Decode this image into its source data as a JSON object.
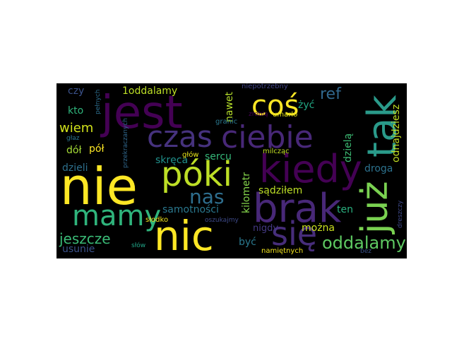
{
  "words": [
    {
      "text": "jest",
      "color": "#440154"
    },
    {
      "text": "nie",
      "color": "#fde725"
    },
    {
      "text": "tak",
      "color": "#2a9a8a"
    },
    {
      "text": "już",
      "color": "#7ad151"
    },
    {
      "text": "coś",
      "color": "#fde725"
    },
    {
      "text": "czas",
      "color": "#46327e"
    },
    {
      "text": "ciebie",
      "color": "#482878"
    },
    {
      "text": "kiedy",
      "color": "#440154"
    },
    {
      "text": "brak",
      "color": "#482878"
    },
    {
      "text": "póki",
      "color": "#bddf26"
    },
    {
      "text": "nas",
      "color": "#2e6e8e"
    },
    {
      "text": "mamy",
      "color": "#2fb47c"
    },
    {
      "text": "nic",
      "color": "#fde725"
    },
    {
      "text": "się",
      "color": "#472d7b"
    },
    {
      "text": "jeszcze",
      "color": "#3aba76"
    },
    {
      "text": "oddalamy",
      "color": "#5ec962"
    },
    {
      "text": "samotności",
      "color": "#2a788e"
    },
    {
      "text": "skręca",
      "color": "#21918c"
    },
    {
      "text": "sercu",
      "color": "#35b779"
    },
    {
      "text": "sądziłem",
      "color": "#bddf26"
    },
    {
      "text": "droga",
      "color": "#2c728e"
    },
    {
      "text": "ref",
      "color": "#31688e"
    },
    {
      "text": "kilometr",
      "color": "#84d44b"
    },
    {
      "text": "nigdy",
      "color": "#443983"
    },
    {
      "text": "być",
      "color": "#2a788e"
    },
    {
      "text": "można",
      "color": "#cae11f"
    },
    {
      "text": "ten",
      "color": "#2ab07f"
    },
    {
      "text": "usunie",
      "color": "#3b528b"
    },
    {
      "text": "dzieli",
      "color": "#2d708e"
    },
    {
      "text": "pół",
      "color": "#fde725"
    },
    {
      "text": "dół",
      "color": "#a5db36"
    },
    {
      "text": "wiem",
      "color": "#d2e21b"
    },
    {
      "text": "kto",
      "color": "#2fb47c"
    },
    {
      "text": "czy",
      "color": "#3b528b"
    },
    {
      "text": "1oddalamy",
      "color": "#bddf26"
    },
    {
      "text": "nawet",
      "color": "#b5de2b"
    },
    {
      "text": "żyć",
      "color": "#22a884"
    },
    {
      "text": "odnajdziesz",
      "color": "#c2df23"
    },
    {
      "text": "dzielą",
      "color": "#3dbc74"
    },
    {
      "text": "niepotrzebny",
      "color": "#414487"
    },
    {
      "text": "zrobią",
      "color": "#440154"
    },
    {
      "text": "umarło",
      "color": "#e5e419"
    },
    {
      "text": "granic",
      "color": "#2a788e"
    },
    {
      "text": "milcząc",
      "color": "#c2df23"
    },
    {
      "text": "głów",
      "color": "#e7e419"
    },
    {
      "text": "przekraczanych",
      "color": "#31688e"
    },
    {
      "text": "pełnych",
      "color": "#2e6e8e"
    },
    {
      "text": "głaz",
      "color": "#2b758e"
    },
    {
      "text": "słodko",
      "color": "#f1e51d"
    },
    {
      "text": "oszukajmy",
      "color": "#3e4a89"
    },
    {
      "text": "słów",
      "color": "#20a386"
    },
    {
      "text": "namiętnych",
      "color": "#f4e61e"
    },
    {
      "text": "bez",
      "color": "#3b528b"
    },
    {
      "text": "dreszczy",
      "color": "#3e4989"
    }
  ]
}
